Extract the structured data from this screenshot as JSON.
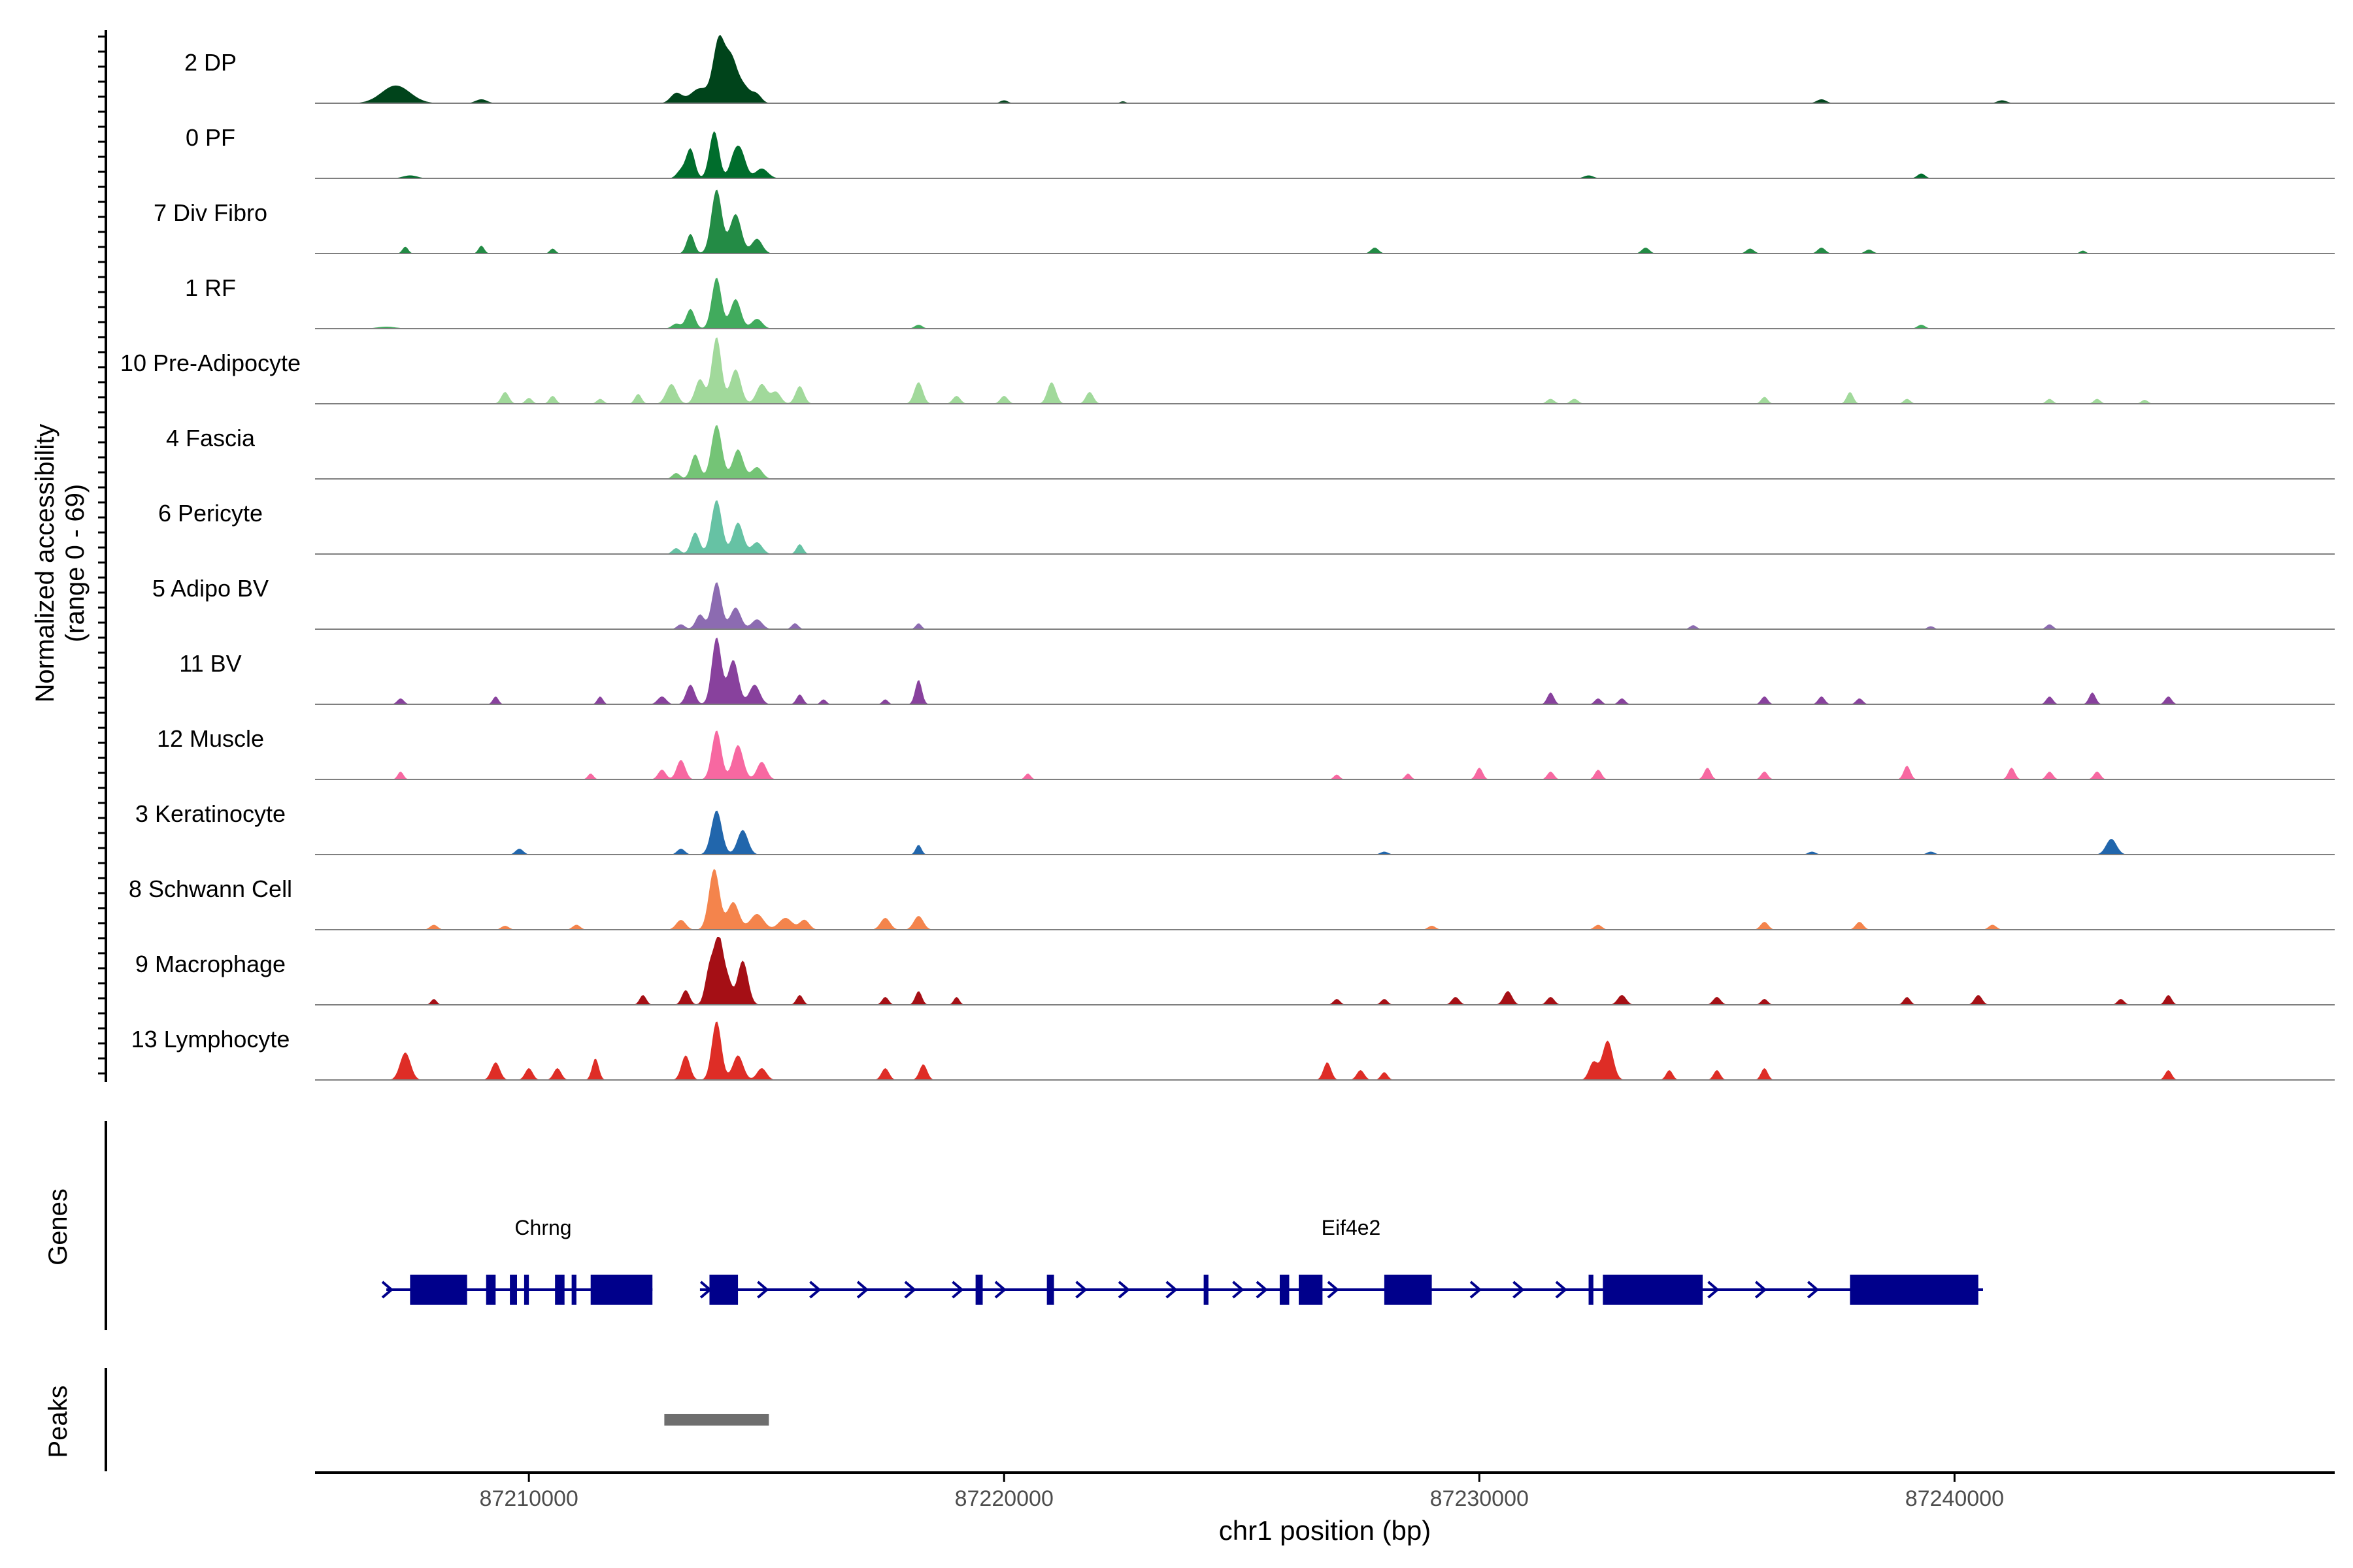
{
  "chart_data": {
    "type": "area",
    "title": "",
    "ylabel_line1": "Normalized accessibility",
    "ylabel_line2": "(range 0 - 69)",
    "xlabel": "chr1 position (bp)",
    "xlim": [
      87205500,
      87248000
    ],
    "ylim": [
      0,
      69
    ],
    "xticks": [
      87210000,
      87220000,
      87230000,
      87240000
    ],
    "xtick_labels": [
      "87210000",
      "87220000",
      "87230000",
      "87240000"
    ],
    "genes_label": "Genes",
    "peaks_label": "Peaks",
    "tracks": [
      {
        "name": "2 DP",
        "color": "#00441b",
        "peaks": [
          [
            87207200,
            18,
            300
          ],
          [
            87213600,
            15,
            200
          ],
          [
            87214000,
            62,
            120
          ],
          [
            87214250,
            40,
            120
          ],
          [
            87214500,
            18,
            150
          ],
          [
            87213100,
            10,
            120
          ],
          [
            87214800,
            8,
            100
          ],
          [
            87209000,
            4,
            120
          ],
          [
            87220000,
            3,
            80
          ],
          [
            87222500,
            2,
            60
          ],
          [
            87237200,
            4,
            100
          ],
          [
            87241000,
            3,
            100
          ]
        ]
      },
      {
        "name": "0 PF",
        "color": "#006d2c",
        "peaks": [
          [
            87213400,
            30,
            90
          ],
          [
            87213900,
            48,
            100
          ],
          [
            87214450,
            28,
            110
          ],
          [
            87213200,
            8,
            90
          ],
          [
            87214900,
            10,
            130
          ],
          [
            87207500,
            3,
            150
          ],
          [
            87214300,
            15,
            90
          ],
          [
            87232300,
            3,
            100
          ],
          [
            87239300,
            5,
            80
          ]
        ]
      },
      {
        "name": "7 Div Fibro",
        "color": "#238b45",
        "peaks": [
          [
            87213400,
            20,
            80
          ],
          [
            87213950,
            65,
            110
          ],
          [
            87214350,
            40,
            120
          ],
          [
            87214800,
            15,
            110
          ],
          [
            87207400,
            7,
            60
          ],
          [
            87209000,
            8,
            60
          ],
          [
            87210500,
            5,
            60
          ],
          [
            87227800,
            6,
            80
          ],
          [
            87233500,
            6,
            80
          ],
          [
            87235700,
            5,
            80
          ],
          [
            87237200,
            6,
            80
          ],
          [
            87238200,
            4,
            80
          ],
          [
            87242700,
            3,
            60
          ]
        ]
      },
      {
        "name": "1 RF",
        "color": "#41ab5d",
        "peaks": [
          [
            87213400,
            20,
            90
          ],
          [
            87213950,
            52,
            100
          ],
          [
            87214350,
            30,
            110
          ],
          [
            87214800,
            10,
            110
          ],
          [
            87213100,
            5,
            90
          ],
          [
            87218200,
            4,
            80
          ],
          [
            87239300,
            4,
            80
          ],
          [
            87207000,
            2,
            200
          ]
        ]
      },
      {
        "name": "10 Pre-Adipocyte",
        "color": "#a1d99b",
        "peaks": [
          [
            87213000,
            20,
            110
          ],
          [
            87213600,
            25,
            100
          ],
          [
            87213950,
            68,
            100
          ],
          [
            87214350,
            35,
            110
          ],
          [
            87214900,
            20,
            110
          ],
          [
            87215200,
            12,
            100
          ],
          [
            87215700,
            18,
            90
          ],
          [
            87212300,
            10,
            70
          ],
          [
            87209500,
            12,
            80
          ],
          [
            87218200,
            22,
            90
          ],
          [
            87221000,
            22,
            90
          ],
          [
            87221800,
            12,
            80
          ],
          [
            87219000,
            8,
            80
          ],
          [
            87220000,
            8,
            80
          ],
          [
            87210000,
            6,
            70
          ],
          [
            87210500,
            8,
            70
          ],
          [
            87211500,
            5,
            70
          ],
          [
            87231500,
            5,
            80
          ],
          [
            87232000,
            5,
            80
          ],
          [
            87236000,
            7,
            70
          ],
          [
            87237800,
            12,
            70
          ],
          [
            87239000,
            5,
            70
          ],
          [
            87242000,
            5,
            70
          ],
          [
            87243000,
            5,
            70
          ],
          [
            87244000,
            4,
            70
          ]
        ]
      },
      {
        "name": "4 Fascia",
        "color": "#74c476",
        "peaks": [
          [
            87213500,
            25,
            90
          ],
          [
            87213950,
            55,
            110
          ],
          [
            87214400,
            30,
            110
          ],
          [
            87214800,
            12,
            110
          ],
          [
            87213100,
            6,
            80
          ]
        ]
      },
      {
        "name": "6 Pericyte",
        "color": "#66c2a4",
        "peaks": [
          [
            87213500,
            22,
            90
          ],
          [
            87213950,
            55,
            110
          ],
          [
            87214400,
            32,
            110
          ],
          [
            87214800,
            12,
            110
          ],
          [
            87213100,
            6,
            80
          ],
          [
            87215700,
            10,
            70
          ]
        ]
      },
      {
        "name": "5 Adipo BV",
        "color": "#8c6bb1",
        "peaks": [
          [
            87213600,
            15,
            90
          ],
          [
            87213950,
            48,
            100
          ],
          [
            87214350,
            22,
            110
          ],
          [
            87214800,
            10,
            110
          ],
          [
            87213200,
            5,
            80
          ],
          [
            87215600,
            6,
            70
          ],
          [
            87218200,
            6,
            60
          ],
          [
            87242000,
            5,
            70
          ],
          [
            87239500,
            3,
            70
          ],
          [
            87234500,
            4,
            70
          ]
        ]
      },
      {
        "name": "11 BV",
        "color": "#88419d",
        "peaks": [
          [
            87213400,
            20,
            90
          ],
          [
            87213950,
            68,
            100
          ],
          [
            87214300,
            45,
            110
          ],
          [
            87214750,
            20,
            110
          ],
          [
            87212800,
            8,
            90
          ],
          [
            87215700,
            10,
            70
          ],
          [
            87218200,
            25,
            70
          ],
          [
            87207300,
            6,
            70
          ],
          [
            87209300,
            8,
            60
          ],
          [
            87211500,
            8,
            60
          ],
          [
            87216200,
            5,
            60
          ],
          [
            87217500,
            5,
            60
          ],
          [
            87231500,
            12,
            70
          ],
          [
            87232500,
            6,
            70
          ],
          [
            87233000,
            6,
            70
          ],
          [
            87236000,
            8,
            70
          ],
          [
            87237200,
            8,
            70
          ],
          [
            87238000,
            6,
            70
          ],
          [
            87242000,
            8,
            70
          ],
          [
            87242900,
            12,
            70
          ],
          [
            87244500,
            8,
            70
          ]
        ]
      },
      {
        "name": "12 Muscle",
        "color": "#f768a1",
        "peaks": [
          [
            87213200,
            20,
            90
          ],
          [
            87213950,
            50,
            100
          ],
          [
            87214400,
            35,
            110
          ],
          [
            87214900,
            18,
            100
          ],
          [
            87212800,
            10,
            80
          ],
          [
            87207300,
            8,
            60
          ],
          [
            87211300,
            6,
            60
          ],
          [
            87220500,
            6,
            60
          ],
          [
            87227000,
            5,
            60
          ],
          [
            87228500,
            6,
            60
          ],
          [
            87230000,
            12,
            70
          ],
          [
            87231500,
            8,
            70
          ],
          [
            87232500,
            10,
            70
          ],
          [
            87234800,
            12,
            70
          ],
          [
            87236000,
            8,
            70
          ],
          [
            87239000,
            14,
            70
          ],
          [
            87241200,
            12,
            70
          ],
          [
            87242000,
            8,
            70
          ],
          [
            87243000,
            8,
            70
          ]
        ]
      },
      {
        "name": "3 Keratinocyte",
        "color": "#2166ac",
        "peaks": [
          [
            87213950,
            45,
            110
          ],
          [
            87214500,
            25,
            110
          ],
          [
            87213200,
            6,
            80
          ],
          [
            87209800,
            6,
            80
          ],
          [
            87218200,
            10,
            60
          ],
          [
            87243300,
            16,
            110
          ],
          [
            87228000,
            3,
            80
          ],
          [
            87237000,
            3,
            80
          ],
          [
            87239500,
            3,
            80
          ]
        ]
      },
      {
        "name": "8 Schwann Cell",
        "color": "#f4844c",
        "peaks": [
          [
            87213900,
            62,
            110
          ],
          [
            87214300,
            28,
            120
          ],
          [
            87214800,
            16,
            140
          ],
          [
            87215400,
            12,
            140
          ],
          [
            87213200,
            10,
            100
          ],
          [
            87215800,
            10,
            100
          ],
          [
            87217500,
            12,
            100
          ],
          [
            87218200,
            14,
            100
          ],
          [
            87208000,
            5,
            80
          ],
          [
            87209500,
            4,
            80
          ],
          [
            87211000,
            5,
            80
          ],
          [
            87229000,
            4,
            80
          ],
          [
            87232500,
            5,
            80
          ],
          [
            87236000,
            8,
            80
          ],
          [
            87238000,
            8,
            80
          ],
          [
            87240800,
            5,
            80
          ]
        ]
      },
      {
        "name": "9 Macrophage",
        "color": "#a50f15",
        "peaks": [
          [
            87213300,
            15,
            80
          ],
          [
            87213800,
            35,
            90
          ],
          [
            87214000,
            68,
            100
          ],
          [
            87214500,
            45,
            110
          ],
          [
            87214200,
            20,
            80
          ],
          [
            87215700,
            10,
            70
          ],
          [
            87212400,
            10,
            70
          ],
          [
            87208000,
            6,
            60
          ],
          [
            87217500,
            8,
            70
          ],
          [
            87218200,
            14,
            70
          ],
          [
            87219000,
            8,
            60
          ],
          [
            87227000,
            6,
            70
          ],
          [
            87228000,
            6,
            70
          ],
          [
            87229500,
            8,
            80
          ],
          [
            87230600,
            14,
            90
          ],
          [
            87231500,
            8,
            80
          ],
          [
            87233000,
            10,
            90
          ],
          [
            87235000,
            8,
            80
          ],
          [
            87236000,
            6,
            70
          ],
          [
            87239000,
            8,
            70
          ],
          [
            87240500,
            10,
            80
          ],
          [
            87243500,
            6,
            70
          ],
          [
            87244500,
            10,
            70
          ]
        ]
      },
      {
        "name": "13 Lymphocyte",
        "color": "#de2d26",
        "peaks": [
          [
            87213300,
            25,
            90
          ],
          [
            87213950,
            60,
            100
          ],
          [
            87214400,
            25,
            110
          ],
          [
            87214900,
            12,
            100
          ],
          [
            87207400,
            28,
            110
          ],
          [
            87209300,
            18,
            90
          ],
          [
            87210000,
            12,
            80
          ],
          [
            87210600,
            12,
            80
          ],
          [
            87211400,
            22,
            70
          ],
          [
            87217500,
            12,
            80
          ],
          [
            87218300,
            16,
            80
          ],
          [
            87226800,
            18,
            80
          ],
          [
            87227500,
            10,
            80
          ],
          [
            87228000,
            8,
            70
          ],
          [
            87232700,
            40,
            110
          ],
          [
            87232400,
            18,
            90
          ],
          [
            87234000,
            10,
            70
          ],
          [
            87235000,
            10,
            70
          ],
          [
            87236000,
            12,
            70
          ],
          [
            87244500,
            10,
            70
          ]
        ]
      }
    ],
    "genes": [
      {
        "name": "Chrng",
        "label_x": 87210300,
        "line": [
          87207000,
          87212600
        ],
        "exons": [
          [
            87207500,
            87208700
          ],
          [
            87209100,
            87209300
          ],
          [
            87209600,
            87209750
          ],
          [
            87209900,
            87210000
          ],
          [
            87210550,
            87210750
          ],
          [
            87210900,
            87211000
          ],
          [
            87211300,
            87212600
          ]
        ],
        "introns": [
          [
            87207000,
            87212600
          ]
        ],
        "arrows": [
          87207000
        ]
      },
      {
        "name": "Eif4e2",
        "label_x": 87227300,
        "line": [
          87213600,
          87240600
        ],
        "exons": [
          [
            87213800,
            87214400
          ],
          [
            87219400,
            87219550
          ],
          [
            87220900,
            87221050
          ],
          [
            87224200,
            87224300
          ],
          [
            87225800,
            87226000
          ],
          [
            87226200,
            87226700
          ],
          [
            87228000,
            87229000
          ],
          [
            87232300,
            87232400
          ],
          [
            87232600,
            87234700
          ],
          [
            87237800,
            87240500
          ]
        ],
        "introns": [
          [
            87213600,
            87240600
          ]
        ],
        "arrows": [
          87213700,
          87214900,
          87216000,
          87217000,
          87218000,
          87219000,
          87219900,
          87221600,
          87222500,
          87223500,
          87224900,
          87225400,
          87226900,
          87229900,
          87230800,
          87231700,
          87234900,
          87235900,
          87237000
        ]
      }
    ],
    "peaks_regions": [
      [
        87212850,
        87215050
      ]
    ]
  }
}
